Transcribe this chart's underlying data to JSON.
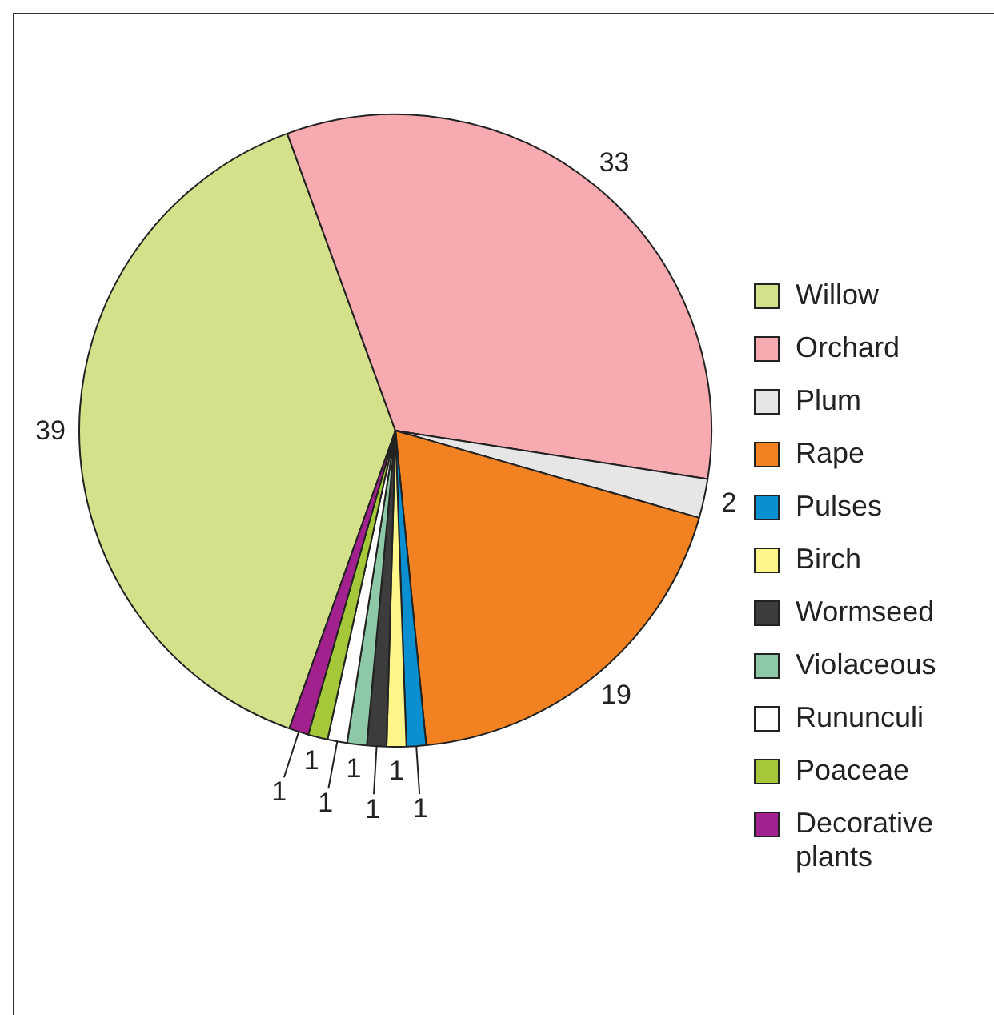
{
  "chart_data": {
    "type": "pie",
    "categories": [
      "Willow",
      "Orchard",
      "Plum",
      "Rape",
      "Pulses",
      "Birch",
      "Wormseed",
      "Violaceous",
      "Rununculi",
      "Poaceae",
      "Decorative plants"
    ],
    "values": [
      39,
      33,
      2,
      19,
      1,
      1,
      1,
      1,
      1,
      1,
      1
    ],
    "colors": [
      "#d4e18a",
      "#f7abb0",
      "#e6e6e6",
      "#f28122",
      "#0a8fd0",
      "#fff68a",
      "#3c3c3c",
      "#8ec9a7",
      "#ffffff",
      "#a5c83a",
      "#a3218f"
    ],
    "data_labels": true,
    "legend": "right"
  }
}
